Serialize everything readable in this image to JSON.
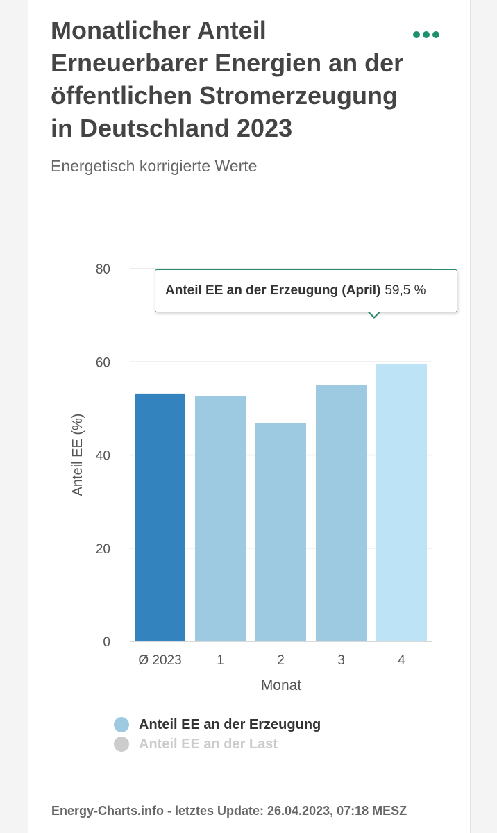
{
  "header": {
    "title": "Monatlicher Anteil Erneuerbarer Energien an der öffentlichen Stromerzeugung in Deutschland 2023",
    "subtitle": "Energetisch korrigierte Werte",
    "menu_icon": "more-dots-icon"
  },
  "colors": {
    "accent": "#1f8f6e",
    "bar_average": "#3283be",
    "bar_month": "#9ecae1",
    "bar_highlight": "#bde3f7",
    "legend_active": "#9ecae1",
    "legend_inactive": "#cccccc"
  },
  "chart_data": {
    "type": "bar",
    "title": "Monatlicher Anteil Erneuerbarer Energien an der öffentlichen Stromerzeugung in Deutschland 2023",
    "subtitle": "Energetisch korrigierte Werte",
    "xlabel": "Monat",
    "ylabel": "Anteil EE (%)",
    "ylim": [
      0,
      80
    ],
    "yticks": [
      0,
      20,
      40,
      60,
      80
    ],
    "grid": true,
    "categories": [
      "Ø 2023",
      "1",
      "2",
      "3",
      "4"
    ],
    "series": [
      {
        "name": "Anteil EE an der Erzeugung",
        "values": [
          53.2,
          52.7,
          46.8,
          55.1,
          59.5
        ],
        "visible": true
      },
      {
        "name": "Anteil EE an der Last",
        "visible": false
      }
    ],
    "highlighted_category": "4",
    "legend_position": "bottom"
  },
  "tooltip": {
    "label": "Anteil EE an der Erzeugung (April)",
    "value": "59,5 %"
  },
  "legend": {
    "items": [
      {
        "label": "Anteil EE an der Erzeugung",
        "state": "active"
      },
      {
        "label": "Anteil EE an der Last",
        "state": "inactive"
      }
    ]
  },
  "footer": {
    "text": "Energy-Charts.info - letztes Update: 26.04.2023, 07:18 MESZ"
  }
}
